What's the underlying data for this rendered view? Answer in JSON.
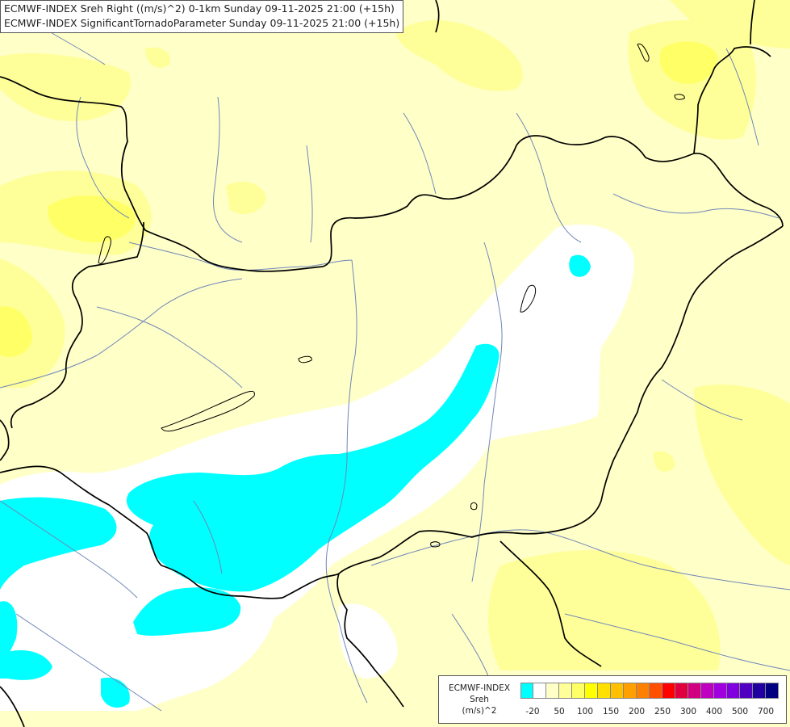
{
  "titles": [
    "ECMWF-INDEX Sreh Right ((m/s)^2) 0-1km Sunday 09-11-2025 21:00 (+15h)",
    "ECMWF-INDEX SignificantTornadoParameter Sunday 09-11-2025 21:00 (+15h)"
  ],
  "legend": {
    "title_lines": [
      "ECMWF-INDEX",
      "Sreh",
      "(m/s)^2"
    ],
    "colors": [
      "#00ffff",
      "#ffffff",
      "#ffffc8",
      "#ffff99",
      "#ffff66",
      "#ffff00",
      "#ffe000",
      "#ffc000",
      "#ffa000",
      "#ff8000",
      "#ff5000",
      "#ff0000",
      "#e00040",
      "#d00080",
      "#c000c0",
      "#a000e0",
      "#8000e0",
      "#5000c0",
      "#2000a0",
      "#000080"
    ],
    "labels": [
      "-20",
      "50",
      "100",
      "150",
      "200",
      "250",
      "300",
      "400",
      "500",
      "700"
    ]
  },
  "map_colors": {
    "background": "#ffffc8",
    "light_yellow": "#ffff99",
    "yellow": "#ffff66",
    "white": "#ffffff",
    "cyan": "#00ffff",
    "border": "#000000",
    "river": "#6f86b8"
  }
}
